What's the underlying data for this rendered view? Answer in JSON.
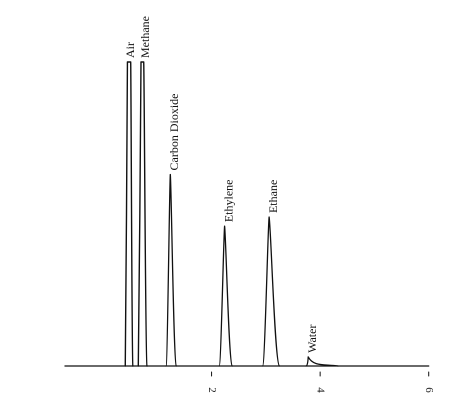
{
  "chart_data": {
    "type": "line",
    "title": "",
    "xlabel": "",
    "ylabel": "",
    "x_ticks": [
      "2",
      "4",
      "6"
    ],
    "xlim": [
      -0.7,
      6.3
    ],
    "ylim": [
      0,
      1
    ],
    "grid": false,
    "legend": "none",
    "baseline_start": -0.7,
    "baseline_end": 6.0,
    "peaks": [
      {
        "label": "Air",
        "x": 0.45,
        "height": 1.0,
        "rise_width": 0.04,
        "decay_width": 0.04,
        "flat_top": 0.06
      },
      {
        "label": "Methane",
        "x": 0.7,
        "height": 1.0,
        "rise_width": 0.05,
        "decay_width": 0.06,
        "flat_top": 0.05
      },
      {
        "label": "Carbon Dioxide",
        "x": 1.24,
        "height": 0.63,
        "rise_width": 0.08,
        "decay_width": 0.11,
        "flat_top": 0.0
      },
      {
        "label": "Ethylene",
        "x": 2.24,
        "height": 0.46,
        "rise_width": 0.1,
        "decay_width": 0.14,
        "flat_top": 0.0
      },
      {
        "label": "Ethane",
        "x": 3.06,
        "height": 0.49,
        "rise_width": 0.12,
        "decay_width": 0.19,
        "flat_top": 0.0
      },
      {
        "label": "Water",
        "x": 3.78,
        "height": 0.03,
        "rise_width": 0.04,
        "decay_width": 0.55,
        "flat_top": 0.0
      }
    ]
  }
}
